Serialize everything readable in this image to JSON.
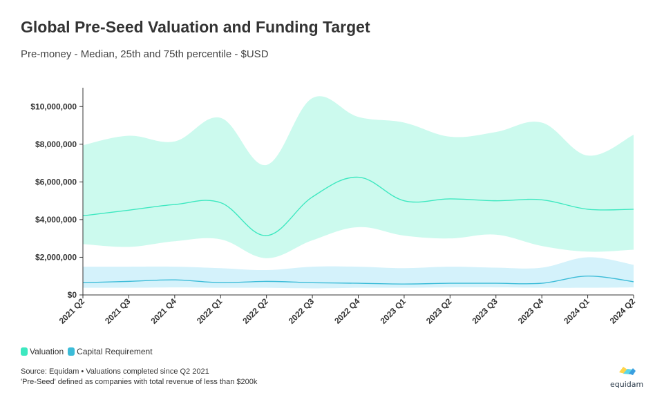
{
  "header": {
    "title": "Global Pre-Seed Valuation and Funding Target",
    "subtitle": "Pre-money - Median, 25th and 75th percentile - $USD"
  },
  "chart_data": {
    "type": "area",
    "title": "Global Pre-Seed Valuation and Funding Target",
    "subtitle": "Pre-money - Median, 25th and 75th percentile - $USD",
    "categories": [
      "2021 Q2",
      "2021 Q3",
      "2021 Q4",
      "2022 Q1",
      "2022 Q2",
      "2022 Q3",
      "2022 Q4",
      "2023 Q1",
      "2023 Q2",
      "2023 Q3",
      "2023 Q4",
      "2024 Q1",
      "2024 Q2"
    ],
    "y_ticks": [
      "$0",
      "$2,000,000",
      "$4,000,000",
      "$6,000,000",
      "$8,000,000",
      "$10,000,000"
    ],
    "ylim": [
      0,
      11000000
    ],
    "series": [
      {
        "name": "Valuation",
        "color": "#3de8c0",
        "band_color": "#ccfaee",
        "median": [
          4200000,
          4500000,
          4800000,
          4900000,
          3150000,
          5200000,
          6250000,
          5000000,
          5100000,
          5000000,
          5050000,
          4550000,
          4550000
        ],
        "p25": [
          2700000,
          2550000,
          2850000,
          2950000,
          1950000,
          2900000,
          3600000,
          3150000,
          3000000,
          3200000,
          2600000,
          2300000,
          2400000
        ],
        "p75": [
          7950000,
          8450000,
          8150000,
          9400000,
          6900000,
          10450000,
          9450000,
          9150000,
          8400000,
          8650000,
          9150000,
          7400000,
          8500000
        ]
      },
      {
        "name": "Capital Requirement",
        "color": "#3cbcd8",
        "band_color": "#d4f2fb",
        "median": [
          650000,
          720000,
          800000,
          650000,
          720000,
          650000,
          620000,
          580000,
          620000,
          620000,
          620000,
          1000000,
          700000
        ],
        "p25": [
          380000,
          380000,
          400000,
          380000,
          380000,
          350000,
          380000,
          380000,
          400000,
          400000,
          380000,
          380000,
          400000
        ],
        "p75": [
          1500000,
          1500000,
          1500000,
          1420000,
          1320000,
          1500000,
          1500000,
          1420000,
          1500000,
          1450000,
          1450000,
          2000000,
          1600000
        ]
      }
    ],
    "legend_position": "bottom-left",
    "grid": false
  },
  "legend": {
    "items": [
      {
        "label": "Valuation",
        "color": "#3de8c0"
      },
      {
        "label": "Capital Requirement",
        "color": "#3cbcd8"
      }
    ]
  },
  "footer": {
    "source_line1": "Source: Equidam • Valuations completed since Q2 2021",
    "source_line2": "'Pre-Seed' defined as companies with total revenue of less than $200k",
    "logo_text": "equidam",
    "logo_colors": [
      "#ffd54a",
      "#5ad6e8",
      "#3a9fe0"
    ]
  }
}
